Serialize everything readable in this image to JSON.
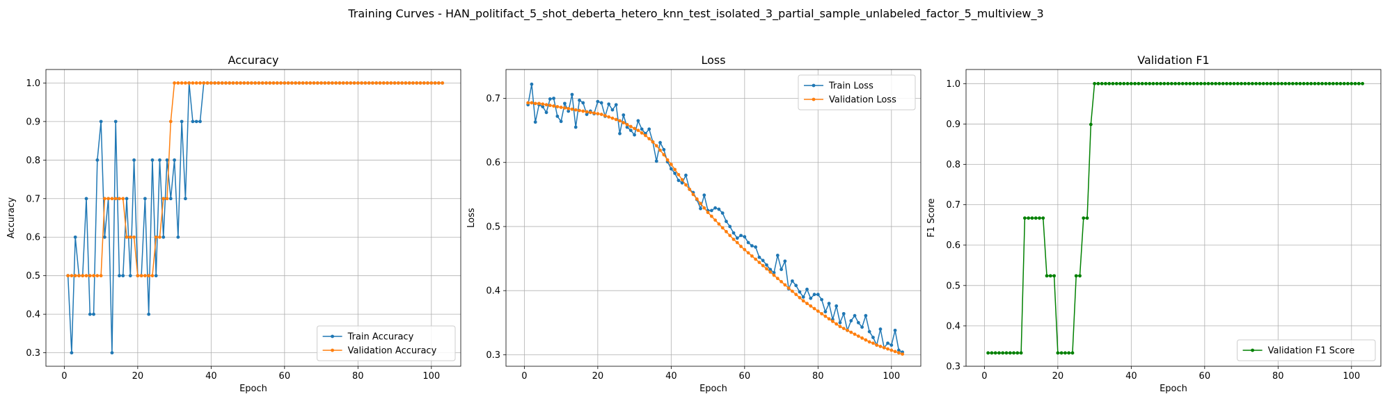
{
  "figure": {
    "suptitle": "Training Curves - HAN_politifact_5_shot_deberta_hetero_knn_test_isolated_3_partial_sample_unlabeled_factor_5_multiview_3"
  },
  "colors": {
    "blue": "#1f77b4",
    "orange": "#ff7f0e",
    "green": "#008000",
    "grid": "#b0b0b0"
  },
  "chart_data": [
    {
      "type": "line",
      "title": "Accuracy",
      "xlabel": "Epoch",
      "ylabel": "Accuracy",
      "xlim": [
        -5,
        108
      ],
      "ylim": [
        0.265,
        1.035
      ],
      "xticks": [
        0,
        20,
        40,
        60,
        80,
        100
      ],
      "yticks": [
        0.3,
        0.4,
        0.5,
        0.6,
        0.7,
        0.8,
        0.9,
        1.0
      ],
      "ytick_labels": [
        "0.3",
        "0.4",
        "0.5",
        "0.6",
        "0.7",
        "0.8",
        "0.9",
        "1.0"
      ],
      "grid": true,
      "legend_position": "lower right",
      "epochs": {
        "start": 1,
        "end": 103
      },
      "series": [
        {
          "name": "Train Accuracy",
          "color": "#1f77b4",
          "values": [
            0.5,
            0.3,
            0.6,
            0.5,
            0.5,
            0.7,
            0.4,
            0.4,
            0.8,
            0.9,
            0.6,
            0.7,
            0.3,
            0.9,
            0.5,
            0.5,
            0.7,
            0.5,
            0.8,
            0.5,
            0.5,
            0.7,
            0.4,
            0.8,
            0.5,
            0.8,
            0.6,
            0.8,
            0.7,
            0.8,
            0.6,
            0.9,
            0.7,
            1.0,
            0.9,
            0.9,
            0.9,
            1.0,
            1.0,
            1.0,
            1.0,
            1.0,
            1.0,
            1.0,
            1.0,
            1.0,
            1.0,
            1.0,
            1.0,
            1.0,
            1.0,
            1.0,
            1.0,
            1.0,
            1.0,
            1.0,
            1.0,
            1.0,
            1.0,
            1.0,
            1.0,
            1.0,
            1.0,
            1.0,
            1.0,
            1.0,
            1.0,
            1.0,
            1.0,
            1.0,
            1.0,
            1.0,
            1.0,
            1.0,
            1.0,
            1.0,
            1.0,
            1.0,
            1.0,
            1.0,
            1.0,
            1.0,
            1.0,
            1.0,
            1.0,
            1.0,
            1.0,
            1.0,
            1.0,
            1.0,
            1.0,
            1.0,
            1.0,
            1.0,
            1.0,
            1.0,
            1.0,
            1.0,
            1.0,
            1.0,
            1.0,
            1.0,
            1.0
          ]
        },
        {
          "name": "Validation Accuracy",
          "color": "#ff7f0e",
          "values": [
            0.5,
            0.5,
            0.5,
            0.5,
            0.5,
            0.5,
            0.5,
            0.5,
            0.5,
            0.5,
            0.7,
            0.7,
            0.7,
            0.7,
            0.7,
            0.7,
            0.6,
            0.6,
            0.6,
            0.5,
            0.5,
            0.5,
            0.5,
            0.5,
            0.6,
            0.6,
            0.7,
            0.7,
            0.9,
            1.0,
            1.0,
            1.0,
            1.0,
            1.0,
            1.0,
            1.0,
            1.0,
            1.0,
            1.0,
            1.0,
            1.0,
            1.0,
            1.0,
            1.0,
            1.0,
            1.0,
            1.0,
            1.0,
            1.0,
            1.0,
            1.0,
            1.0,
            1.0,
            1.0,
            1.0,
            1.0,
            1.0,
            1.0,
            1.0,
            1.0,
            1.0,
            1.0,
            1.0,
            1.0,
            1.0,
            1.0,
            1.0,
            1.0,
            1.0,
            1.0,
            1.0,
            1.0,
            1.0,
            1.0,
            1.0,
            1.0,
            1.0,
            1.0,
            1.0,
            1.0,
            1.0,
            1.0,
            1.0,
            1.0,
            1.0,
            1.0,
            1.0,
            1.0,
            1.0,
            1.0,
            1.0,
            1.0,
            1.0,
            1.0,
            1.0,
            1.0,
            1.0,
            1.0,
            1.0,
            1.0,
            1.0,
            1.0,
            1.0
          ]
        }
      ]
    },
    {
      "type": "line",
      "title": "Loss",
      "xlabel": "Epoch",
      "ylabel": "Loss",
      "xlim": [
        -5,
        108
      ],
      "ylim": [
        0.282,
        0.745
      ],
      "xticks": [
        0,
        20,
        40,
        60,
        80,
        100
      ],
      "yticks": [
        0.3,
        0.4,
        0.5,
        0.6,
        0.7
      ],
      "ytick_labels": [
        "0.3",
        "0.4",
        "0.5",
        "0.6",
        "0.7"
      ],
      "grid": true,
      "legend_position": "upper right",
      "epochs": {
        "start": 1,
        "end": 103
      },
      "series": [
        {
          "name": "Train Loss",
          "color": "#1f77b4",
          "values": [
            0.69,
            0.722,
            0.663,
            0.69,
            0.687,
            0.678,
            0.699,
            0.7,
            0.672,
            0.664,
            0.692,
            0.68,
            0.706,
            0.655,
            0.697,
            0.693,
            0.675,
            0.68,
            0.676,
            0.695,
            0.693,
            0.672,
            0.691,
            0.682,
            0.69,
            0.645,
            0.674,
            0.655,
            0.65,
            0.643,
            0.665,
            0.652,
            0.645,
            0.652,
            0.632,
            0.602,
            0.631,
            0.62,
            0.601,
            0.59,
            0.583,
            0.572,
            0.568,
            0.58,
            0.558,
            0.553,
            0.542,
            0.528,
            0.549,
            0.525,
            0.525,
            0.529,
            0.527,
            0.521,
            0.508,
            0.5,
            0.49,
            0.482,
            0.486,
            0.484,
            0.475,
            0.47,
            0.468,
            0.452,
            0.447,
            0.44,
            0.433,
            0.428,
            0.455,
            0.433,
            0.446,
            0.403,
            0.415,
            0.408,
            0.398,
            0.39,
            0.402,
            0.388,
            0.394,
            0.394,
            0.386,
            0.367,
            0.38,
            0.355,
            0.376,
            0.35,
            0.364,
            0.338,
            0.353,
            0.361,
            0.35,
            0.343,
            0.361,
            0.336,
            0.327,
            0.315,
            0.34,
            0.311,
            0.318,
            0.315,
            0.338,
            0.307,
            0.304
          ]
        },
        {
          "name": "Validation Loss",
          "color": "#ff7f0e",
          "values": [
            0.693,
            0.693,
            0.692,
            0.692,
            0.691,
            0.69,
            0.689,
            0.688,
            0.687,
            0.686,
            0.685,
            0.684,
            0.683,
            0.682,
            0.681,
            0.68,
            0.679,
            0.678,
            0.677,
            0.676,
            0.675,
            0.673,
            0.671,
            0.669,
            0.667,
            0.665,
            0.662,
            0.659,
            0.656,
            0.653,
            0.65,
            0.646,
            0.642,
            0.637,
            0.632,
            0.626,
            0.619,
            0.612,
            0.604,
            0.597,
            0.589,
            0.581,
            0.573,
            0.565,
            0.558,
            0.55,
            0.543,
            0.536,
            0.529,
            0.522,
            0.516,
            0.51,
            0.504,
            0.498,
            0.492,
            0.486,
            0.48,
            0.475,
            0.469,
            0.464,
            0.459,
            0.454,
            0.449,
            0.444,
            0.439,
            0.434,
            0.429,
            0.424,
            0.419,
            0.414,
            0.409,
            0.404,
            0.399,
            0.394,
            0.389,
            0.384,
            0.38,
            0.376,
            0.372,
            0.368,
            0.364,
            0.36,
            0.356,
            0.352,
            0.348,
            0.344,
            0.341,
            0.338,
            0.335,
            0.332,
            0.329,
            0.326,
            0.323,
            0.32,
            0.318,
            0.315,
            0.313,
            0.311,
            0.309,
            0.307,
            0.305,
            0.303,
            0.301
          ]
        }
      ]
    },
    {
      "type": "line",
      "title": "Validation F1",
      "xlabel": "Epoch",
      "ylabel": "F1 Score",
      "xlim": [
        -5,
        108
      ],
      "ylim": [
        0.3,
        1.035
      ],
      "xticks": [
        0,
        20,
        40,
        60,
        80,
        100
      ],
      "yticks": [
        0.3,
        0.4,
        0.5,
        0.6,
        0.7,
        0.8,
        0.9,
        1.0
      ],
      "ytick_labels": [
        "0.3",
        "0.4",
        "0.5",
        "0.6",
        "0.7",
        "0.8",
        "0.9",
        "1.0"
      ],
      "grid": true,
      "legend_position": "lower right",
      "epochs": {
        "start": 1,
        "end": 103
      },
      "series": [
        {
          "name": "Validation F1 Score",
          "color": "#008000",
          "values": [
            0.333,
            0.333,
            0.333,
            0.333,
            0.333,
            0.333,
            0.333,
            0.333,
            0.333,
            0.333,
            0.667,
            0.667,
            0.667,
            0.667,
            0.667,
            0.667,
            0.524,
            0.524,
            0.524,
            0.333,
            0.333,
            0.333,
            0.333,
            0.333,
            0.524,
            0.524,
            0.667,
            0.667,
            0.899,
            1.0,
            1.0,
            1.0,
            1.0,
            1.0,
            1.0,
            1.0,
            1.0,
            1.0,
            1.0,
            1.0,
            1.0,
            1.0,
            1.0,
            1.0,
            1.0,
            1.0,
            1.0,
            1.0,
            1.0,
            1.0,
            1.0,
            1.0,
            1.0,
            1.0,
            1.0,
            1.0,
            1.0,
            1.0,
            1.0,
            1.0,
            1.0,
            1.0,
            1.0,
            1.0,
            1.0,
            1.0,
            1.0,
            1.0,
            1.0,
            1.0,
            1.0,
            1.0,
            1.0,
            1.0,
            1.0,
            1.0,
            1.0,
            1.0,
            1.0,
            1.0,
            1.0,
            1.0,
            1.0,
            1.0,
            1.0,
            1.0,
            1.0,
            1.0,
            1.0,
            1.0,
            1.0,
            1.0,
            1.0,
            1.0,
            1.0,
            1.0,
            1.0,
            1.0,
            1.0,
            1.0,
            1.0,
            1.0,
            1.0
          ]
        }
      ]
    }
  ]
}
